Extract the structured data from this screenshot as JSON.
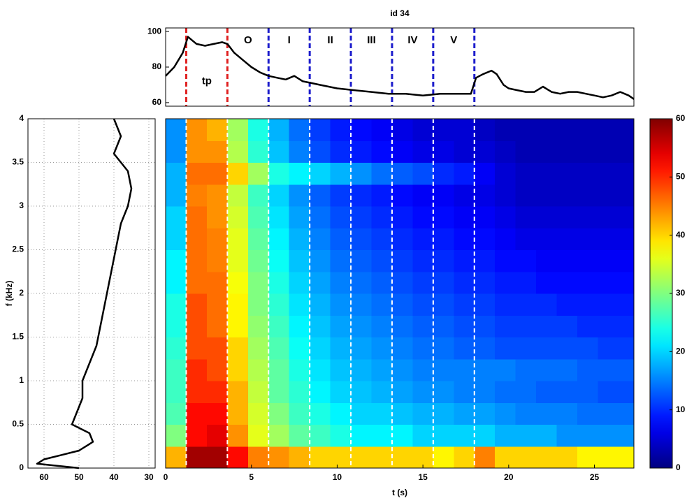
{
  "chart_data": [
    {
      "type": "line",
      "title": "id 34",
      "x": [
        0,
        0.5,
        1,
        1.3,
        1.8,
        2.3,
        2.8,
        3.3,
        3.6,
        4,
        4.5,
        5,
        5.5,
        6,
        6.5,
        7,
        7.5,
        8,
        8.5,
        9,
        10,
        11,
        12,
        13,
        14,
        15,
        16,
        17,
        17.8,
        18.1,
        18.5,
        19,
        19.3,
        19.7,
        20,
        20.5,
        21,
        21.5,
        22,
        22.5,
        23,
        23.5,
        24,
        24.5,
        25,
        25.5,
        26,
        26.5,
        27,
        27.3
      ],
      "series": [
        {
          "color": "#000000",
          "values": [
            75,
            80,
            88,
            97,
            93,
            92,
            93,
            94,
            93,
            88,
            84,
            80,
            77,
            75,
            74,
            73,
            75,
            72,
            71,
            70,
            68,
            67,
            66,
            65,
            65,
            64,
            65,
            65,
            65,
            74,
            76,
            78,
            76,
            70,
            68,
            67,
            66,
            66,
            69,
            66,
            65,
            66,
            66,
            65,
            64,
            63,
            64,
            66,
            64,
            62
          ]
        }
      ],
      "xlim": [
        0,
        27.3
      ],
      "ylim": [
        58,
        102
      ],
      "yticks": [
        60,
        80,
        100
      ],
      "vlines": [
        1.2,
        3.6,
        6.0,
        8.4,
        10.8,
        13.2,
        15.6,
        18.0
      ],
      "vline_colors": [
        "#e02020",
        "#e02020",
        "#1c1ccc",
        "#1c1ccc",
        "#1c1ccc",
        "#1c1ccc",
        "#1c1ccc",
        "#1c1ccc"
      ],
      "annotations": [
        {
          "text": "tp",
          "x": 2.4,
          "y": 72,
          "color": "#e02020"
        },
        {
          "text": "O",
          "x": 4.8,
          "y": 95,
          "color": "#1c1ccc"
        },
        {
          "text": "I",
          "x": 7.2,
          "y": 95,
          "color": "#1c1ccc"
        },
        {
          "text": "II",
          "x": 9.6,
          "y": 95,
          "color": "#1c1ccc"
        },
        {
          "text": "III",
          "x": 12.0,
          "y": 95,
          "color": "#1c1ccc"
        },
        {
          "text": "IV",
          "x": 14.4,
          "y": 95,
          "color": "#1c1ccc"
        },
        {
          "text": "V",
          "x": 16.8,
          "y": 95,
          "color": "#1c1ccc"
        }
      ]
    },
    {
      "type": "line",
      "orientation": "horizontal",
      "ylabel": "f (kHz)",
      "y": [
        0,
        0.05,
        0.1,
        0.15,
        0.2,
        0.3,
        0.4,
        0.5,
        0.6,
        0.8,
        1,
        1.2,
        1.4,
        1.6,
        1.8,
        2,
        2.2,
        2.4,
        2.6,
        2.8,
        3,
        3.2,
        3.4,
        3.6,
        3.8,
        4
      ],
      "series": [
        {
          "color": "#000000",
          "values": [
            50,
            62,
            60,
            55,
            50,
            46,
            47,
            52,
            51,
            49,
            49,
            47,
            45,
            44,
            43,
            42,
            41,
            40,
            39,
            38,
            36,
            35,
            36,
            40,
            38,
            40
          ]
        }
      ],
      "xlim": [
        64.6,
        28.2
      ],
      "xticks": [
        60,
        50,
        40,
        30
      ],
      "ylim": [
        0,
        4
      ],
      "yticks": [
        0,
        0.5,
        1,
        1.5,
        2,
        2.5,
        3,
        3.5,
        4
      ],
      "grid": true
    },
    {
      "type": "heatmap",
      "xlabel": "t (s)",
      "x_edges": [
        0,
        1.2,
        2.4,
        3.6,
        4.8,
        6.0,
        7.2,
        8.4,
        9.6,
        10.8,
        12.0,
        13.2,
        14.4,
        15.6,
        16.8,
        18.0,
        19.2,
        20.4,
        21.6,
        22.8,
        24.0,
        25.2,
        26.4,
        27.3
      ],
      "y_edges": [
        0,
        0.25,
        0.5,
        0.75,
        1,
        1.25,
        1.5,
        1.75,
        2,
        2.25,
        2.5,
        2.75,
        3,
        3.25,
        3.5,
        3.75,
        4
      ],
      "values": [
        [
          42,
          58,
          58,
          52,
          45,
          44,
          42,
          40,
          40,
          40,
          40,
          40,
          40,
          38,
          40,
          45,
          40,
          40,
          40,
          40,
          38,
          38,
          38
        ],
        [
          30,
          52,
          54,
          44,
          36,
          32,
          28,
          26,
          24,
          22,
          22,
          22,
          20,
          20,
          20,
          20,
          18,
          18,
          18,
          16,
          16,
          16,
          16
        ],
        [
          27,
          52,
          52,
          42,
          35,
          30,
          26,
          24,
          22,
          20,
          20,
          19,
          18,
          18,
          17,
          17,
          16,
          15,
          15,
          15,
          14,
          14,
          14
        ],
        [
          26,
          50,
          50,
          42,
          34,
          28,
          25,
          22,
          20,
          19,
          18,
          17,
          16,
          16,
          15,
          15,
          14,
          14,
          13,
          13,
          13,
          12,
          12
        ],
        [
          26,
          50,
          48,
          40,
          33,
          28,
          24,
          21,
          19,
          18,
          17,
          16,
          15,
          15,
          15,
          15,
          15,
          14,
          14,
          14,
          13,
          13,
          13
        ],
        [
          25,
          48,
          48,
          40,
          32,
          27,
          23,
          20,
          18,
          17,
          16,
          15,
          14,
          14,
          13,
          13,
          12,
          12,
          12,
          12,
          12,
          11,
          11
        ],
        [
          24,
          48,
          46,
          38,
          31,
          26,
          22,
          19,
          17,
          16,
          15,
          14,
          13,
          13,
          12,
          12,
          11,
          11,
          11,
          11,
          10,
          10,
          10
        ],
        [
          24,
          48,
          46,
          38,
          30,
          25,
          21,
          18,
          16,
          15,
          14,
          13,
          12,
          12,
          11,
          11,
          10,
          10,
          10,
          9,
          9,
          9,
          9
        ],
        [
          22,
          46,
          46,
          37,
          30,
          24,
          20,
          17,
          15,
          14,
          13,
          12,
          11,
          11,
          10,
          10,
          9,
          9,
          8,
          8,
          8,
          8,
          8
        ],
        [
          22,
          46,
          45,
          36,
          29,
          23,
          19,
          16,
          14,
          13,
          12,
          11,
          10,
          10,
          9,
          9,
          8,
          8,
          7,
          7,
          7,
          7,
          7
        ],
        [
          20,
          46,
          45,
          36,
          28,
          22,
          18,
          15,
          13,
          12,
          11,
          10,
          9,
          9,
          8,
          8,
          7,
          6,
          6,
          6,
          6,
          6,
          6
        ],
        [
          20,
          46,
          44,
          35,
          27,
          21,
          17,
          14,
          12,
          11,
          10,
          9,
          8,
          8,
          7,
          7,
          6,
          5,
          5,
          5,
          5,
          5,
          5
        ],
        [
          18,
          45,
          44,
          34,
          26,
          20,
          16,
          13,
          11,
          10,
          9,
          8,
          7,
          7,
          6,
          6,
          5,
          4,
          4,
          4,
          4,
          4,
          4
        ],
        [
          18,
          46,
          46,
          40,
          32,
          24,
          22,
          20,
          18,
          16,
          14,
          13,
          12,
          10,
          9,
          7,
          5,
          4,
          4,
          4,
          4,
          4,
          4
        ],
        [
          16,
          44,
          44,
          33,
          25,
          19,
          15,
          12,
          10,
          9,
          8,
          7,
          6,
          6,
          5,
          5,
          4,
          3,
          3,
          3,
          3,
          3,
          3
        ],
        [
          16,
          44,
          42,
          32,
          24,
          18,
          14,
          11,
          9,
          8,
          7,
          6,
          5,
          5,
          5,
          4,
          3,
          3,
          3,
          3,
          3,
          3,
          3
        ]
      ],
      "colormap": "jet",
      "clim": [
        0,
        60
      ],
      "colorbar_ticks": [
        0,
        10,
        20,
        30,
        40,
        50,
        60
      ],
      "xlim": [
        0,
        27.3
      ],
      "xticks": [
        0,
        5,
        10,
        15,
        20,
        25
      ],
      "ylim": [
        0,
        4
      ],
      "vlines": [
        1.2,
        3.6,
        6.0,
        8.4,
        10.8,
        13.2,
        15.6,
        18.0
      ],
      "vline_color": "#ffffff"
    }
  ]
}
